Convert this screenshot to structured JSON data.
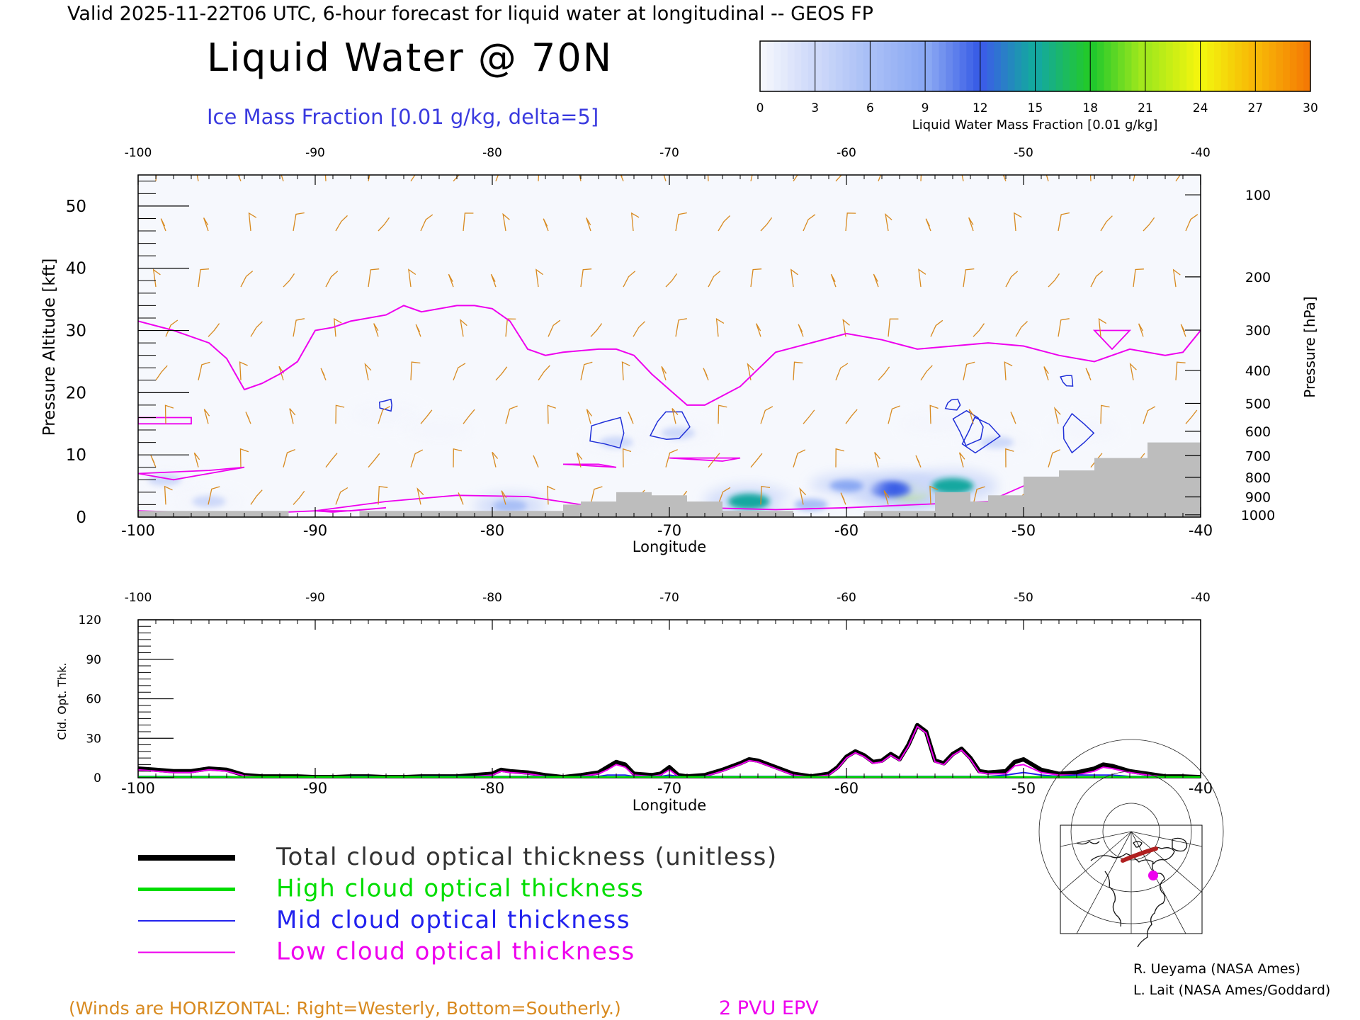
{
  "header": {
    "valid_line": "Valid 2025-11-22T06 UTC, 6-hour forecast for liquid water at longitudinal -- GEOS FP",
    "title": "Liquid Water @ 70N",
    "subtitle": "Ice Mass Fraction [0.01 g/kg, delta=5]"
  },
  "colorbar": {
    "label": "Liquid Water Mass Fraction [0.01 g/kg]",
    "ticks": [
      "0",
      "3",
      "6",
      "9",
      "12",
      "15",
      "18",
      "21",
      "24",
      "27",
      "30"
    ],
    "colors": [
      "#f4f6fd",
      "#ced9f9",
      "#a9bff6",
      "#8aa8f3",
      "#3a5ee6",
      "#14a8a0",
      "#22c92c",
      "#a3e81c",
      "#f2f50e",
      "#f8b806",
      "#f47a05",
      "#ea2a00"
    ]
  },
  "chart_data": [
    {
      "type": "heatmap",
      "name": "liquid-water-cross-section",
      "xlabel": "Longitude",
      "ylabel": "Pressure Altitude [kft]",
      "y2label": "Pressure [hPa]",
      "xlim": [
        -100,
        -40
      ],
      "ylim": [
        0,
        55
      ],
      "x_ticks": [
        "-100",
        "-90",
        "-80",
        "-70",
        "-60",
        "-50",
        "-40"
      ],
      "y_ticks": [
        "0",
        "10",
        "20",
        "30",
        "40",
        "50"
      ],
      "pressure_ticks": [
        "100",
        "200",
        "300",
        "400",
        "500",
        "600",
        "700",
        "800",
        "900",
        "1000"
      ],
      "epv_2pvu": {
        "lon": [
          -100,
          -98,
          -96,
          -95,
          -94,
          -93,
          -92,
          -91,
          -90,
          -89,
          -88,
          -86,
          -85,
          -84,
          -82,
          -81,
          -80,
          -79,
          -78,
          -77,
          -76,
          -74,
          -73,
          -72,
          -71,
          -70,
          -69,
          -68,
          -66,
          -64,
          -62,
          -60,
          -58,
          -56,
          -54,
          -52,
          -50,
          -48,
          -46,
          -44,
          -42,
          -41,
          -40
        ],
        "kft": [
          31.5,
          30,
          28,
          25.5,
          20.5,
          21.5,
          23,
          25,
          30,
          30.5,
          31.5,
          32.5,
          34,
          33,
          34,
          34,
          33.5,
          31.5,
          27,
          26,
          26.5,
          27,
          27,
          26,
          23,
          20.5,
          18,
          18,
          21,
          26.5,
          28,
          29.5,
          28.5,
          27,
          27.5,
          28,
          27.5,
          26,
          25,
          27,
          26,
          26.5,
          30
        ]
      },
      "terrain": {
        "lon": [
          -100,
          -91.5,
          -91.5,
          -87.5,
          -87.5,
          -78,
          -78,
          -76,
          -76,
          -75,
          -75,
          -73,
          -73,
          -71,
          -71,
          -69,
          -69,
          -67,
          -67,
          -63,
          -63,
          -59,
          -59,
          -55,
          -55,
          -53,
          -53,
          -52,
          -52,
          -50,
          -50,
          -48,
          -48,
          -46,
          -46,
          -43,
          -43,
          -40,
          -40
        ],
        "kft": [
          1,
          1,
          0,
          0,
          1,
          1,
          1,
          1,
          2,
          2,
          2.5,
          2.5,
          4,
          4,
          3.5,
          3.5,
          2.5,
          2.5,
          1,
          1,
          0,
          0,
          1,
          1,
          4,
          4,
          2.5,
          2.5,
          3.5,
          3.5,
          6.5,
          6.5,
          7.5,
          7.5,
          9.5,
          9.5,
          12,
          12,
          0
        ]
      },
      "liquid_water_blobs": [
        {
          "lon": -56.5,
          "kft": 4,
          "value": 20
        },
        {
          "lon": -57.5,
          "kft": 4.5,
          "value": 12
        },
        {
          "lon": -60,
          "kft": 5,
          "value": 10
        },
        {
          "lon": -54,
          "kft": 5,
          "value": 15
        },
        {
          "lon": -65.5,
          "kft": 2.5,
          "value": 15
        },
        {
          "lon": -62,
          "kft": 2,
          "value": 6
        },
        {
          "lon": -79,
          "kft": 1.8,
          "value": 8
        },
        {
          "lon": -73,
          "kft": 12,
          "value": 3
        },
        {
          "lon": -69.5,
          "kft": 13.5,
          "value": 3
        },
        {
          "lon": -51.5,
          "kft": 12,
          "value": 3
        },
        {
          "lon": -46.5,
          "kft": 14,
          "value": 2
        },
        {
          "lon": -98.5,
          "kft": 6,
          "value": 4
        },
        {
          "lon": -96,
          "kft": 2.5,
          "value": 4
        },
        {
          "lon": -86,
          "kft": 16.5,
          "value": 2
        },
        {
          "lon": -83,
          "kft": 14,
          "value": 1
        },
        {
          "lon": -55,
          "kft": 15,
          "value": 2
        }
      ],
      "ice_contours": [
        {
          "lon": -73.5,
          "kft": 13.5
        },
        {
          "lon": -70,
          "kft": 14.5
        },
        {
          "lon": -52.5,
          "kft": 13
        },
        {
          "lon": -47,
          "kft": 13.5
        },
        {
          "lon": -53,
          "kft": 14.5
        },
        {
          "lon": -47.5,
          "kft": 22
        },
        {
          "lon": -86,
          "kft": 18
        },
        {
          "lon": -54,
          "kft": 18
        }
      ],
      "wind_barb_levels_kft": [
        54,
        46,
        37,
        29,
        22,
        15,
        8,
        2
      ]
    },
    {
      "type": "line",
      "name": "cloud-optical-thickness",
      "xlabel": "Longitude",
      "ylabel": "Cld. Opt. Thk.",
      "xlim": [
        -100,
        -40
      ],
      "ylim": [
        0,
        120
      ],
      "x_ticks": [
        "-100",
        "-90",
        "-80",
        "-70",
        "-60",
        "-50",
        "-40"
      ],
      "y_ticks": [
        "0",
        "30",
        "60",
        "90",
        "120"
      ],
      "x": [
        -100,
        -99,
        -98,
        -97,
        -96,
        -95,
        -94,
        -93,
        -92,
        -91,
        -90,
        -89,
        -88,
        -87,
        -86,
        -85,
        -84,
        -83,
        -82,
        -81,
        -80,
        -79.5,
        -79,
        -78,
        -77,
        -76,
        -75,
        -74,
        -73.5,
        -73,
        -72.5,
        -72,
        -71,
        -70.5,
        -70,
        -69.5,
        -69,
        -68,
        -67,
        -66,
        -65.5,
        -65,
        -64,
        -63,
        -62,
        -61,
        -60.5,
        -60,
        -59.5,
        -59,
        -58.5,
        -58,
        -57.5,
        -57,
        -56.5,
        -56,
        -55.5,
        -55,
        -54.5,
        -54,
        -53.5,
        -53,
        -52.5,
        -52,
        -51,
        -50.5,
        -50,
        -49.5,
        -49,
        -48,
        -47,
        -46,
        -45.5,
        -45,
        -44,
        -43,
        -42,
        -41,
        -40
      ],
      "series": [
        {
          "name": "Total cloud optical thickness (unitless)",
          "color": "#000000",
          "values": [
            7,
            6,
            5,
            5,
            7,
            6,
            2,
            1,
            1,
            1,
            0.5,
            0.5,
            1,
            1,
            0.5,
            0.5,
            1,
            1,
            1,
            2,
            3,
            6,
            5,
            4,
            2,
            0.5,
            2,
            4,
            8,
            12,
            10,
            3,
            2,
            3,
            8,
            2,
            1,
            2,
            6,
            11,
            14,
            13,
            8,
            3,
            1,
            3,
            8,
            16,
            20,
            17,
            12,
            13,
            18,
            14,
            25,
            40,
            35,
            13,
            11,
            18,
            22,
            15,
            5,
            4,
            5,
            12,
            14,
            10,
            6,
            3,
            4,
            7,
            10,
            9,
            5,
            3,
            1,
            1,
            0.5
          ]
        },
        {
          "name": "High cloud optical thickness",
          "color": "#00dd00",
          "values": [
            0.5,
            0.5,
            0.5,
            0.5,
            0.5,
            0.5,
            0.5,
            0.5,
            0.5,
            0.5,
            0.5,
            0.5,
            0.5,
            0.5,
            0.5,
            0.5,
            0.5,
            0.5,
            0.5,
            0.5,
            0.5,
            0.5,
            0.5,
            0.5,
            0.5,
            0.5,
            0.5,
            0.5,
            0.5,
            0.5,
            0.5,
            0.5,
            0.5,
            0.5,
            0.5,
            0.5,
            0.5,
            0.5,
            0.5,
            0.5,
            0.5,
            0.5,
            0.5,
            0.5,
            0.5,
            0.5,
            0.5,
            0.5,
            0.5,
            0.5,
            0.5,
            0.5,
            0.5,
            0.5,
            0.5,
            0.5,
            0.5,
            0.5,
            0.5,
            0.5,
            0.5,
            0.5,
            0.5,
            0.5,
            0.5,
            0.5,
            0.5,
            0.5,
            0.5,
            0.5,
            0.5,
            0.5,
            0.5,
            0.5,
            0.5,
            0.5,
            0.5,
            0.5,
            0.5
          ]
        },
        {
          "name": "Mid cloud optical thickness",
          "color": "#2222ee",
          "values": [
            1,
            1,
            1,
            1,
            1,
            1,
            0.5,
            0.5,
            0.5,
            0.5,
            0.5,
            0.5,
            1,
            1,
            0.5,
            0.5,
            1,
            1,
            1,
            1,
            1,
            1,
            1,
            1,
            1,
            0.5,
            1,
            1,
            2,
            2,
            2,
            1,
            1,
            1,
            2,
            1,
            0.5,
            1,
            1,
            1,
            1,
            1,
            1,
            1,
            0.5,
            0.5,
            1,
            1,
            1,
            1,
            1,
            1,
            1,
            1,
            1,
            1,
            1,
            1,
            1,
            1,
            1,
            1,
            1,
            1,
            2,
            3,
            4,
            3,
            2,
            1,
            2,
            2,
            2,
            2,
            1,
            1,
            0.5,
            0.5,
            0.5
          ]
        },
        {
          "name": "Low cloud optical thickness",
          "color": "#ee00ee",
          "values": [
            6,
            5,
            4,
            4,
            6,
            5,
            1.5,
            0.5,
            0.5,
            0.5,
            0,
            0,
            0.5,
            0.5,
            0,
            0,
            0.5,
            0.5,
            0.5,
            1,
            2,
            5,
            4,
            3,
            1,
            0,
            1,
            3,
            6,
            10,
            8,
            2,
            1,
            2,
            6,
            1,
            0.5,
            1,
            5,
            10,
            13,
            12,
            7,
            2,
            0.5,
            2,
            7,
            15,
            19,
            16,
            11,
            12,
            17,
            13,
            24,
            39,
            34,
            12,
            10,
            17,
            21,
            14,
            4,
            3,
            3,
            9,
            10,
            7,
            4,
            2,
            2,
            5,
            8,
            7,
            4,
            2,
            0.5,
            0.5,
            0
          ]
        }
      ]
    }
  ],
  "legend": {
    "items": [
      {
        "label": "Total cloud optical thickness (unitless)",
        "color": "#000000"
      },
      {
        "label": "High cloud optical thickness",
        "color": "#00dd00"
      },
      {
        "label": "Mid cloud optical thickness",
        "color": "#2222ee"
      },
      {
        "label": "Low cloud optical thickness",
        "color": "#ee00ee"
      }
    ]
  },
  "footer": {
    "winds_note": "(Winds are HORIZONTAL: Right=Westerly, Bottom=Southerly.)",
    "epv_label": "2 PVU EPV",
    "credit_1": "R. Ueyama (NASA Ames)",
    "credit_2": "L. Lait (NASA Ames/Goddard)"
  },
  "colors": {
    "wind": "#d88a20",
    "epv": "#ee00ee",
    "ice": "#1f2fd8",
    "terrain": "#bdbdbd",
    "note": "#d88a20"
  }
}
